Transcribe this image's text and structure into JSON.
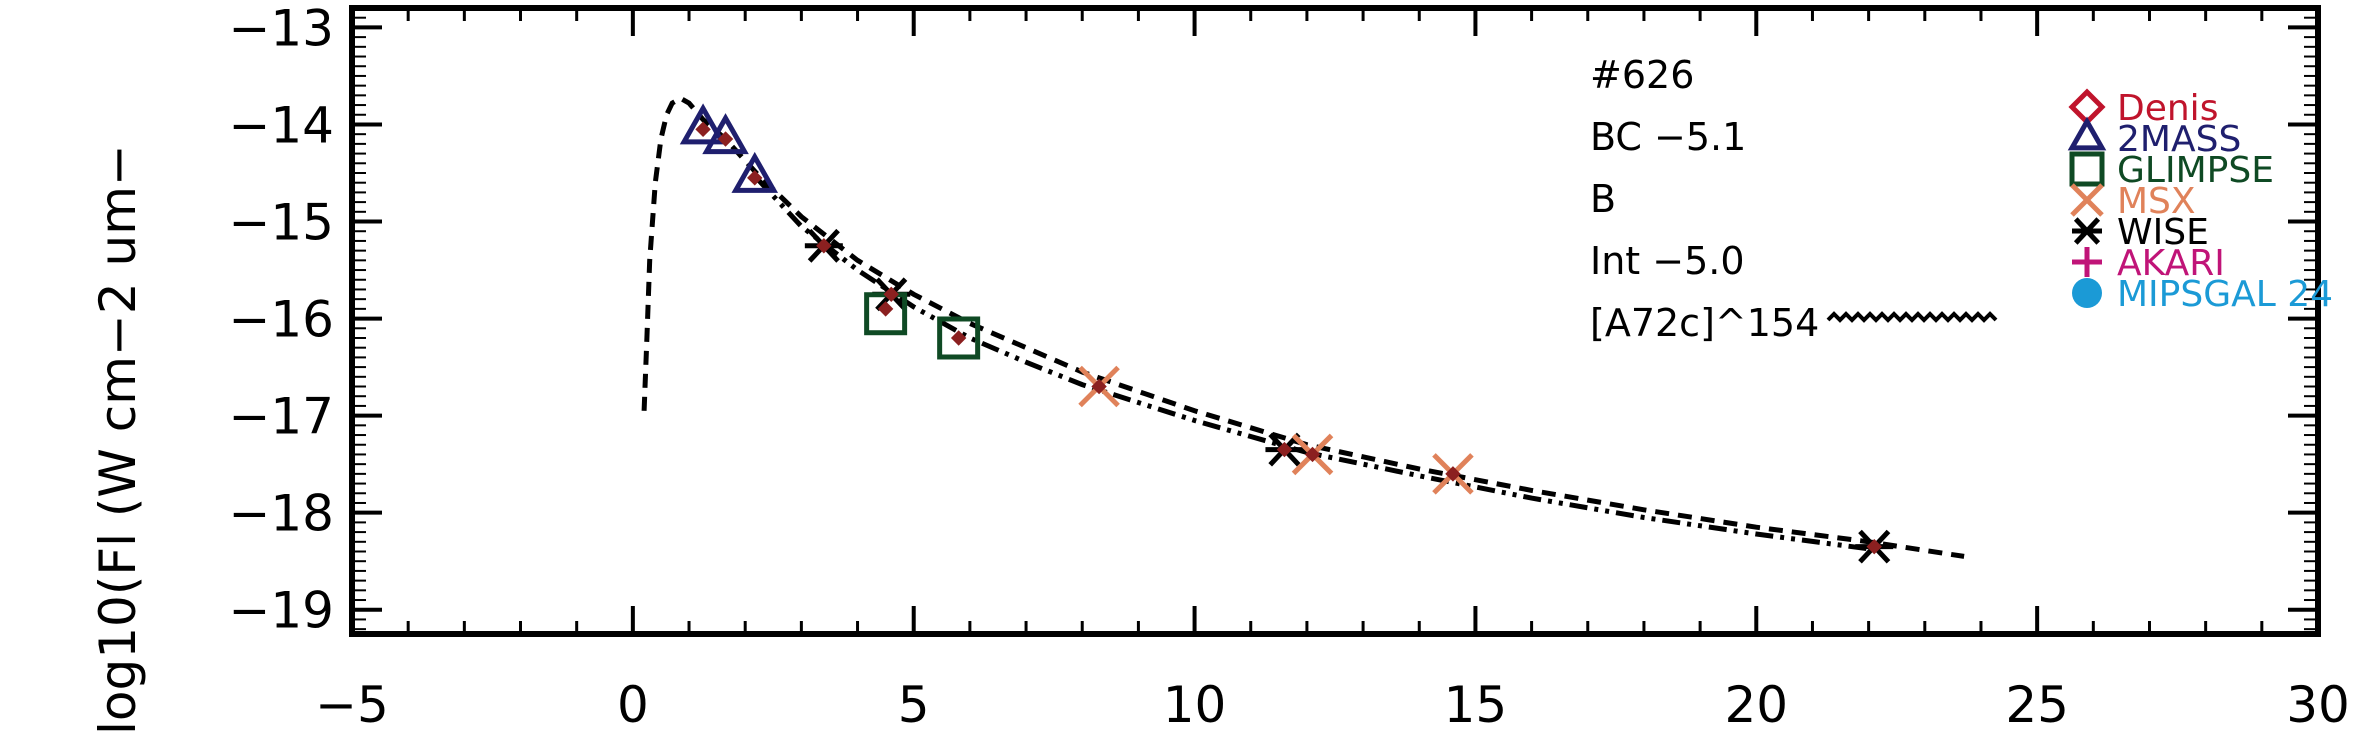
{
  "chart_data": {
    "type": "scatter",
    "title": "",
    "xlabel": "",
    "ylabel": "log10(Fl (W cm−2 um−",
    "xlim": [
      -5,
      30
    ],
    "ylim": [
      -19.25,
      -12.8
    ],
    "x_ticks": [
      -5,
      0,
      5,
      10,
      15,
      20,
      25,
      30
    ],
    "x_tick_labels": [
      "−5",
      "0",
      "5",
      "10",
      "15",
      "20",
      "25",
      "30"
    ],
    "y_ticks": [
      -13,
      -14,
      -15,
      -16,
      -17,
      -18,
      -19
    ],
    "y_tick_labels": [
      "−13",
      "−14",
      "−15",
      "−16",
      "−17",
      "−18",
      "−19"
    ],
    "annotations": [
      "#626",
      "BC −5.1",
      "B",
      "Int −5.0",
      "[A72c]^154"
    ],
    "legend_position": "top-right",
    "legend": [
      {
        "name": "Denis",
        "marker": "diamond",
        "color": "#c0142c"
      },
      {
        "name": "2MASS",
        "marker": "triangle",
        "color": "#1f1f6e"
      },
      {
        "name": "GLIMPSE",
        "marker": "square",
        "color": "#0f4a24"
      },
      {
        "name": "MSX",
        "marker": "x",
        "color": "#e0825a"
      },
      {
        "name": "WISE",
        "marker": "asterisk",
        "color": "#000000"
      },
      {
        "name": "AKARI",
        "marker": "plus",
        "color": "#c01478"
      },
      {
        "name": "MIPSGAL 24",
        "marker": "circle",
        "color": "#1b9ad6"
      }
    ],
    "series": [
      {
        "name": "2MASS",
        "marker": "triangle",
        "color": "#1f1f6e",
        "x": [
          1.25,
          1.65,
          2.17
        ],
        "y": [
          -14.05,
          -14.15,
          -14.55
        ]
      },
      {
        "name": "WISE",
        "marker": "asterisk",
        "color": "#000000",
        "x": [
          3.4,
          4.6,
          11.6,
          22.1
        ],
        "y": [
          -15.25,
          -15.75,
          -17.35,
          -18.35
        ]
      },
      {
        "name": "GLIMPSE",
        "marker": "square",
        "color": "#0f4a24",
        "x": [
          4.5,
          5.8
        ],
        "y": [
          -15.95,
          -16.2
        ]
      },
      {
        "name": "MSX",
        "marker": "x",
        "color": "#e0825a",
        "x": [
          8.3,
          12.1,
          14.6
        ],
        "y": [
          -16.7,
          -17.4,
          -17.6
        ]
      },
      {
        "name": "",
        "marker": "small-diamond",
        "color": "#8b2020",
        "x": [
          1.25,
          1.65,
          2.17,
          3.4,
          4.5,
          4.6,
          5.8,
          8.3,
          11.6,
          12.1,
          14.6,
          22.1
        ],
        "y": [
          -14.05,
          -14.15,
          -14.55,
          -15.25,
          -15.9,
          -15.75,
          -16.2,
          -16.7,
          -17.35,
          -17.4,
          -17.6,
          -18.35
        ]
      },
      {
        "name": "",
        "style": "dashed",
        "color": "#000000",
        "x": [
          0.2,
          0.25,
          0.3,
          0.4,
          0.5,
          0.6,
          0.7,
          0.85,
          1.0,
          1.25,
          1.65,
          2.2,
          3.0,
          4.0,
          5.0,
          6.0,
          7.0,
          8.0,
          10.0,
          12.0,
          14.0,
          16.0,
          18.0,
          20.0,
          22.0,
          23.7
        ],
        "y": [
          -16.95,
          -16.2,
          -15.4,
          -14.6,
          -14.15,
          -13.9,
          -13.78,
          -13.73,
          -13.78,
          -13.95,
          -14.15,
          -14.5,
          -14.95,
          -15.4,
          -15.75,
          -16.05,
          -16.3,
          -16.55,
          -16.95,
          -17.3,
          -17.55,
          -17.77,
          -17.97,
          -18.15,
          -18.3,
          -18.45
        ]
      },
      {
        "name": "",
        "style": "dash-dot",
        "color": "#000000",
        "x": [
          2.2,
          3.0,
          4.0,
          5.0,
          6.0,
          7.0,
          8.0,
          10.0,
          12.0,
          14.0,
          16.0,
          18.0,
          20.0,
          22.1
        ],
        "y": [
          -14.55,
          -15.05,
          -15.5,
          -15.88,
          -16.2,
          -16.45,
          -16.68,
          -17.05,
          -17.38,
          -17.62,
          -17.85,
          -18.05,
          -18.22,
          -18.38
        ]
      }
    ]
  }
}
